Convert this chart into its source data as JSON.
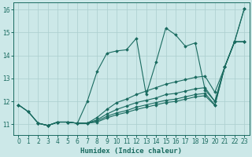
{
  "xlabel": "Humidex (Indice chaleur)",
  "bg_color": "#cce8e8",
  "line_color": "#1a6b60",
  "grid_color": "#aacece",
  "xlim": [
    -0.5,
    23.5
  ],
  "ylim": [
    10.55,
    16.3
  ],
  "xticks": [
    0,
    1,
    2,
    3,
    4,
    5,
    6,
    7,
    8,
    9,
    10,
    11,
    12,
    13,
    14,
    15,
    16,
    17,
    18,
    19,
    20,
    21,
    22,
    23
  ],
  "yticks": [
    11,
    12,
    13,
    14,
    15,
    16
  ],
  "series": [
    [
      [
        0,
        11.85
      ],
      [
        1,
        11.55
      ],
      [
        2,
        11.05
      ],
      [
        3,
        10.95
      ],
      [
        4,
        11.1
      ],
      [
        5,
        11.1
      ],
      [
        6,
        11.05
      ],
      [
        7,
        12.0
      ],
      [
        8,
        13.3
      ],
      [
        9,
        14.1
      ],
      [
        10,
        14.2
      ],
      [
        11,
        14.25
      ],
      [
        12,
        14.75
      ],
      [
        13,
        12.3
      ],
      [
        14,
        13.7
      ],
      [
        15,
        15.2
      ],
      [
        16,
        14.9
      ],
      [
        17,
        14.4
      ],
      [
        18,
        14.55
      ],
      [
        19,
        12.5
      ],
      [
        20,
        12.0
      ],
      [
        21,
        13.5
      ],
      [
        22,
        14.6
      ],
      [
        23,
        16.05
      ]
    ],
    [
      [
        0,
        11.85
      ],
      [
        1,
        11.55
      ],
      [
        2,
        11.05
      ],
      [
        3,
        10.95
      ],
      [
        4,
        11.1
      ],
      [
        5,
        11.1
      ],
      [
        6,
        11.05
      ],
      [
        7,
        11.05
      ],
      [
        8,
        11.3
      ],
      [
        9,
        11.65
      ],
      [
        10,
        11.95
      ],
      [
        11,
        12.1
      ],
      [
        12,
        12.3
      ],
      [
        13,
        12.45
      ],
      [
        14,
        12.6
      ],
      [
        15,
        12.75
      ],
      [
        16,
        12.85
      ],
      [
        17,
        12.95
      ],
      [
        18,
        13.05
      ],
      [
        19,
        13.1
      ],
      [
        20,
        12.4
      ],
      [
        21,
        13.5
      ],
      [
        22,
        14.6
      ],
      [
        23,
        16.05
      ]
    ],
    [
      [
        0,
        11.85
      ],
      [
        1,
        11.55
      ],
      [
        2,
        11.05
      ],
      [
        3,
        10.95
      ],
      [
        4,
        11.1
      ],
      [
        5,
        11.1
      ],
      [
        6,
        11.05
      ],
      [
        7,
        11.05
      ],
      [
        8,
        11.2
      ],
      [
        9,
        11.45
      ],
      [
        10,
        11.65
      ],
      [
        11,
        11.8
      ],
      [
        12,
        11.95
      ],
      [
        13,
        12.05
      ],
      [
        14,
        12.15
      ],
      [
        15,
        12.3
      ],
      [
        16,
        12.35
      ],
      [
        17,
        12.45
      ],
      [
        18,
        12.55
      ],
      [
        19,
        12.6
      ],
      [
        20,
        12.0
      ],
      [
        21,
        13.5
      ],
      [
        22,
        14.6
      ],
      [
        23,
        14.6
      ]
    ],
    [
      [
        2,
        11.05
      ],
      [
        3,
        10.95
      ],
      [
        4,
        11.1
      ],
      [
        5,
        11.1
      ],
      [
        6,
        11.05
      ],
      [
        7,
        11.05
      ],
      [
        8,
        11.15
      ],
      [
        9,
        11.35
      ],
      [
        10,
        11.5
      ],
      [
        11,
        11.6
      ],
      [
        12,
        11.75
      ],
      [
        13,
        11.85
      ],
      [
        14,
        11.95
      ],
      [
        15,
        12.05
      ],
      [
        16,
        12.1
      ],
      [
        17,
        12.2
      ],
      [
        18,
        12.3
      ],
      [
        19,
        12.35
      ],
      [
        20,
        11.85
      ],
      [
        21,
        13.5
      ],
      [
        22,
        14.6
      ],
      [
        23,
        14.6
      ]
    ],
    [
      [
        2,
        11.05
      ],
      [
        3,
        10.95
      ],
      [
        4,
        11.1
      ],
      [
        5,
        11.1
      ],
      [
        6,
        11.05
      ],
      [
        7,
        11.05
      ],
      [
        8,
        11.1
      ],
      [
        9,
        11.28
      ],
      [
        10,
        11.42
      ],
      [
        11,
        11.52
      ],
      [
        12,
        11.65
      ],
      [
        13,
        11.75
      ],
      [
        14,
        11.85
      ],
      [
        15,
        11.95
      ],
      [
        16,
        12.0
      ],
      [
        17,
        12.1
      ],
      [
        18,
        12.2
      ],
      [
        19,
        12.25
      ],
      [
        20,
        11.82
      ],
      [
        21,
        13.5
      ],
      [
        22,
        14.6
      ],
      [
        23,
        14.6
      ]
    ]
  ]
}
